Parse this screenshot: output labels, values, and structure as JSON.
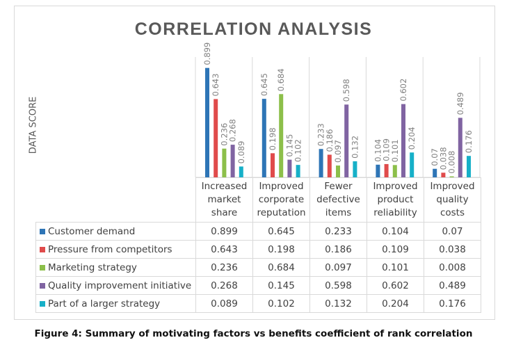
{
  "chart_data": {
    "type": "bar",
    "title": "CORRELATION ANALYSIS",
    "xlabel": "",
    "ylabel": "DATA SCORE",
    "ylim": [
      0,
      0.9
    ],
    "grid": false,
    "legend": "data-table",
    "categories": [
      "Increased market share",
      "Improved corporate reputation",
      "Fewer defective items",
      "Improved product reliability",
      "Improved quality costs"
    ],
    "category_lines": [
      [
        "Increased",
        "market",
        "share"
      ],
      [
        "Improved",
        "corporate",
        "reputation"
      ],
      [
        "Fewer",
        "defective",
        "items"
      ],
      [
        "Improved",
        "product",
        "reliability"
      ],
      [
        "Improved",
        "quality",
        "costs"
      ]
    ],
    "series": [
      {
        "name": "Customer demand",
        "color": "#2e75b6",
        "values": [
          0.899,
          0.645,
          0.233,
          0.104,
          0.07
        ],
        "labels": [
          "0.899",
          "0.645",
          "0.233",
          "0.104",
          "0.07"
        ]
      },
      {
        "name": "Pressure from competitors",
        "color": "#e04b4b",
        "values": [
          0.643,
          0.198,
          0.186,
          0.109,
          0.038
        ],
        "labels": [
          "0.643",
          "0.198",
          "0.186",
          "0.109",
          "0.038"
        ]
      },
      {
        "name": "Marketing strategy",
        "color": "#8cbf4a",
        "values": [
          0.236,
          0.684,
          0.097,
          0.101,
          0.008
        ],
        "labels": [
          "0.236",
          "0.684",
          "0.097",
          "0.101",
          "0.008"
        ]
      },
      {
        "name": "Quality improvement initiative",
        "color": "#8064a2",
        "values": [
          0.268,
          0.145,
          0.598,
          0.602,
          0.489
        ],
        "labels": [
          "0.268",
          "0.145",
          "0.598",
          "0.602",
          "0.489"
        ]
      },
      {
        "name": "Part of a larger strategy",
        "color": "#17b0c8",
        "values": [
          0.089,
          0.102,
          0.132,
          0.204,
          0.176
        ],
        "labels": [
          "0.089",
          "0.102",
          "0.132",
          "0.204",
          "0.176"
        ]
      }
    ]
  },
  "caption": "Figure 4: Summary of motivating factors vs benefits coefficient of rank correlation"
}
